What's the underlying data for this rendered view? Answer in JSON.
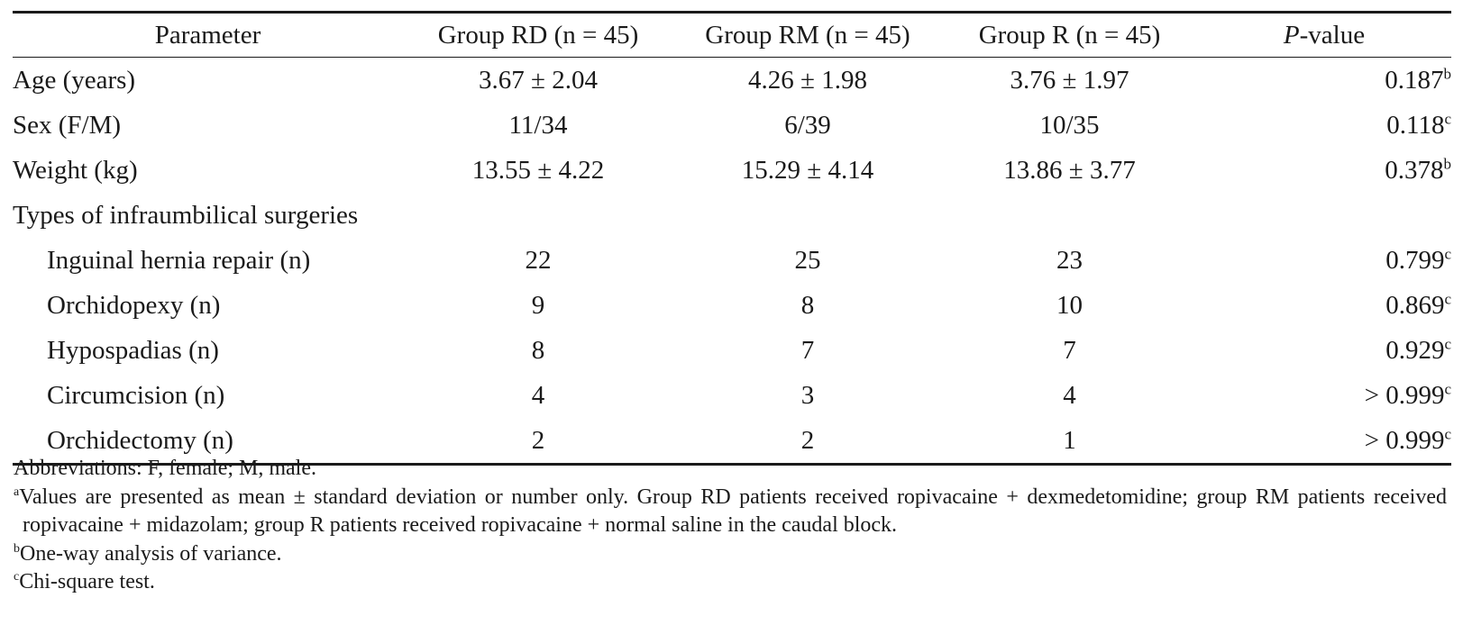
{
  "table": {
    "headers": {
      "parameter": "Parameter",
      "group_rd": "Group RD (n = 45)",
      "group_rm": "Group RM (n = 45)",
      "group_r": "Group R (n = 45)",
      "p_italic": "P",
      "p_rest": "-value"
    },
    "rows": [
      {
        "label": "Age (years)",
        "rd": "3.67 ± 2.04",
        "rm": "4.26 ± 1.98",
        "r": "3.76 ± 1.97",
        "p": "0.187",
        "p_sup": "b"
      },
      {
        "label": "Sex (F/M)",
        "rd": "11/34",
        "rm": "6/39",
        "r": "10/35",
        "p": "0.118",
        "p_sup": "c"
      },
      {
        "label": "Weight (kg)",
        "rd": "13.55 ± 4.22",
        "rm": "15.29 ± 4.14",
        "r": "13.86 ± 3.77",
        "p": "0.378",
        "p_sup": "b"
      },
      {
        "label": "Types of infraumbilical surgeries"
      },
      {
        "label": "Inguinal hernia repair (n)",
        "rd": "22",
        "rm": "25",
        "r": "23",
        "p": "0.799",
        "p_sup": "c"
      },
      {
        "label": "Orchidopexy (n)",
        "rd": "9",
        "rm": "8",
        "r": "10",
        "p": "0.869",
        "p_sup": "c"
      },
      {
        "label": "Hypospadias (n)",
        "rd": "8",
        "rm": "7",
        "r": "7",
        "p": "0.929",
        "p_sup": "c"
      },
      {
        "label": "Circumcision (n)",
        "rd": "4",
        "rm": "3",
        "r": "4",
        "p": "> 0.999",
        "p_sup": "c"
      },
      {
        "label": "Orchidectomy (n)",
        "rd": "2",
        "rm": "2",
        "r": "1",
        "p": "> 0.999",
        "p_sup": "c"
      }
    ]
  },
  "footnotes": {
    "abbreviations": "Abbreviations: F, female; M, male.",
    "a_mark": "a",
    "a_text": "Values are presented as mean ± standard deviation or number only. Group RD patients received ropivacaine + dexmedetomidine; group RM patients received ropivacaine + midazolam; group R patients received ropivacaine + normal saline in the caudal block.",
    "b_mark": "b",
    "b_text": "One-way analysis of variance.",
    "c_mark": "c",
    "c_text": "Chi-square test."
  }
}
